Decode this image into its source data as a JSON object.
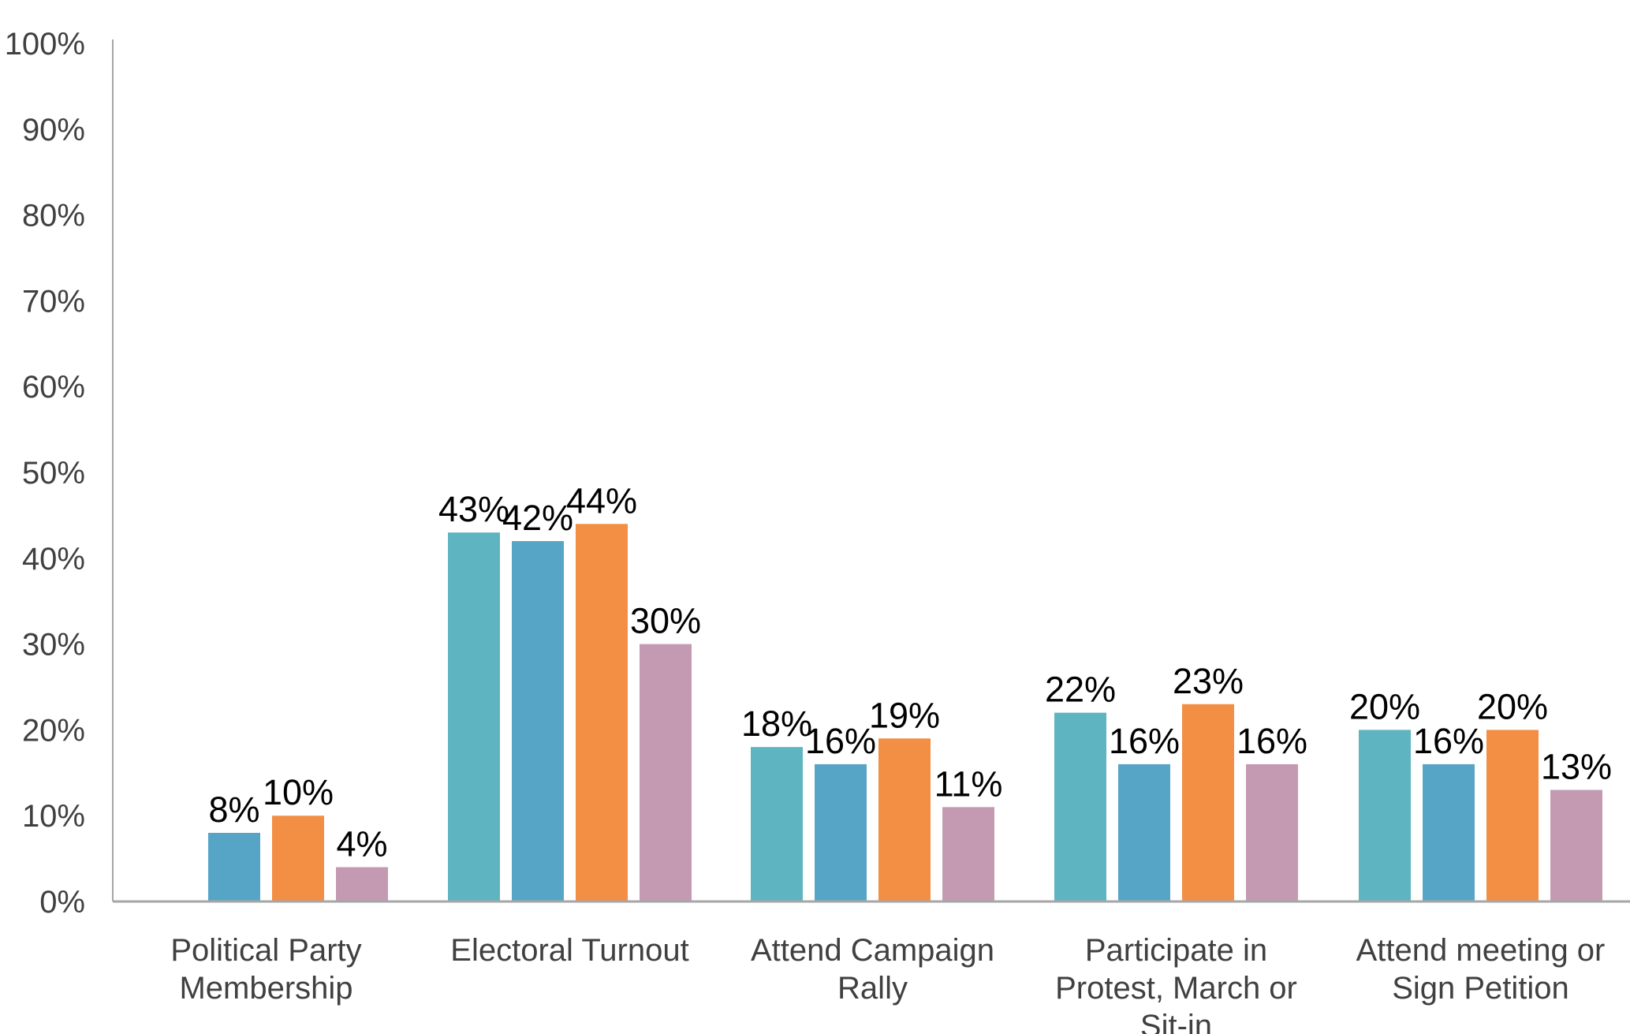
{
  "chart_data": {
    "type": "bar",
    "title": "",
    "xlabel": "",
    "ylabel": "",
    "ylim": [
      0,
      100
    ],
    "y_ticks": [
      "0%",
      "10%",
      "20%",
      "30%",
      "40%",
      "50%",
      "60%",
      "70%",
      "80%",
      "90%",
      "100%"
    ],
    "grid": false,
    "legend": "none",
    "categories": [
      [
        "Political Party",
        "Membership"
      ],
      [
        "Electoral Turnout"
      ],
      [
        "Attend Campaign",
        "Rally"
      ],
      [
        "Participate in",
        "Protest, March or",
        "Sit-in"
      ],
      [
        "Attend meeting or",
        "Sign Petition"
      ]
    ],
    "series": [
      {
        "color": "#5fb4c1",
        "values": [
          null,
          43,
          18,
          22,
          20
        ],
        "labels": [
          "",
          "43%",
          "18%",
          "22%",
          "20%"
        ]
      },
      {
        "color": "#57a5c6",
        "values": [
          8,
          42,
          16,
          16,
          16
        ],
        "labels": [
          "8%",
          "42%",
          "16%",
          "16%",
          "16%"
        ]
      },
      {
        "color": "#f28f45",
        "values": [
          10,
          44,
          19,
          23,
          20
        ],
        "labels": [
          "10%",
          "44%",
          "19%",
          "23%",
          "20%"
        ]
      },
      {
        "color": "#c49ab2",
        "values": [
          4,
          30,
          11,
          16,
          13
        ],
        "labels": [
          "4%",
          "30%",
          "11%",
          "16%",
          "13%"
        ]
      }
    ],
    "axis_color": "#a6a6a6"
  }
}
